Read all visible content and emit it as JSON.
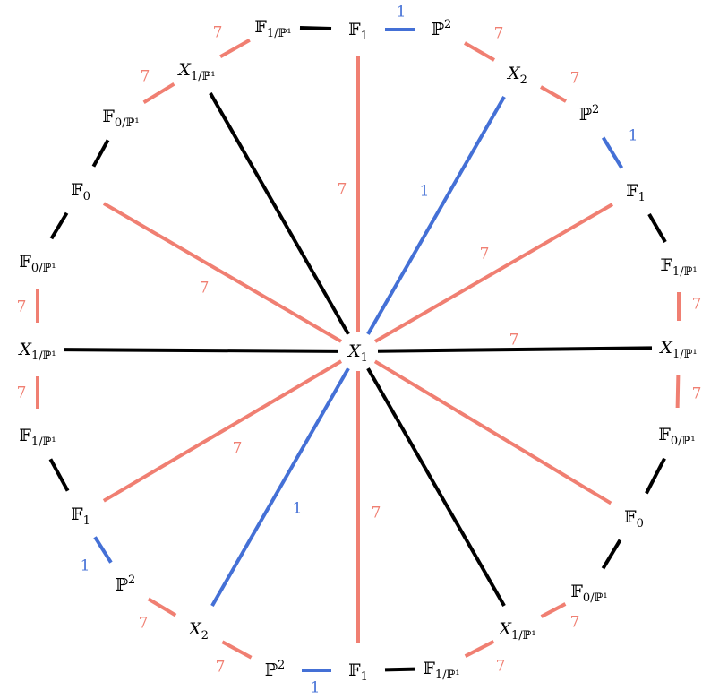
{
  "colors": {
    "black": "#000000",
    "salmon": "#f07f72",
    "blue": "#4470d6"
  },
  "nodes": [
    {
      "id": "center",
      "main": "X",
      "sub": "1"
    },
    {
      "id": "n0",
      "main": "𝔽",
      "sub": "1/ℙ¹"
    },
    {
      "id": "n1",
      "main": "𝔽",
      "sub": "1"
    },
    {
      "id": "n2",
      "main": "ℙ",
      "sub": "2",
      "sup": true
    },
    {
      "id": "n3",
      "main": "X",
      "sub": "2"
    },
    {
      "id": "n4",
      "main": "ℙ",
      "sub": "2",
      "sup": true
    },
    {
      "id": "n5",
      "main": "𝔽",
      "sub": "1"
    },
    {
      "id": "n6",
      "main": "𝔽",
      "sub": "1/ℙ¹"
    },
    {
      "id": "n7",
      "main": "X",
      "sub": "1/ℙ¹"
    },
    {
      "id": "n8",
      "main": "𝔽",
      "sub": "0/ℙ¹"
    },
    {
      "id": "n9",
      "main": "𝔽",
      "sub": "0"
    },
    {
      "id": "n10",
      "main": "𝔽",
      "sub": "0/ℙ¹"
    },
    {
      "id": "n11",
      "main": "X",
      "sub": "1/ℙ¹"
    },
    {
      "id": "n12",
      "main": "𝔽",
      "sub": "1/ℙ¹"
    },
    {
      "id": "n13",
      "main": "𝔽",
      "sub": "1"
    },
    {
      "id": "n14",
      "main": "ℙ",
      "sub": "2",
      "sup": true
    },
    {
      "id": "n15",
      "main": "X",
      "sub": "2"
    },
    {
      "id": "n16",
      "main": "ℙ",
      "sub": "2",
      "sup": true
    },
    {
      "id": "n17",
      "main": "𝔽",
      "sub": "1"
    },
    {
      "id": "n18",
      "main": "𝔽",
      "sub": "1/ℙ¹"
    },
    {
      "id": "n19",
      "main": "X",
      "sub": "1/ℙ¹"
    },
    {
      "id": "n20",
      "main": "𝔽",
      "sub": "0/ℙ¹"
    },
    {
      "id": "n21",
      "main": "𝔽",
      "sub": "0"
    },
    {
      "id": "n22",
      "main": "𝔽",
      "sub": "0/ℙ¹"
    },
    {
      "id": "n23",
      "main": "X",
      "sub": "1/ℙ¹"
    }
  ],
  "edges": [
    {
      "from": "n0",
      "to": "n1",
      "color": "black",
      "label": ""
    },
    {
      "from": "n1",
      "to": "n2",
      "color": "blue",
      "label": "1"
    },
    {
      "from": "n2",
      "to": "n3",
      "color": "salmon",
      "label": "7"
    },
    {
      "from": "n3",
      "to": "n4",
      "color": "salmon",
      "label": "7"
    },
    {
      "from": "n4",
      "to": "n5",
      "color": "blue",
      "label": "1"
    },
    {
      "from": "n5",
      "to": "n6",
      "color": "black",
      "label": ""
    },
    {
      "from": "n6",
      "to": "n7",
      "color": "salmon",
      "label": "7"
    },
    {
      "from": "n7",
      "to": "n8",
      "color": "salmon",
      "label": "7"
    },
    {
      "from": "n8",
      "to": "n9",
      "color": "black",
      "label": ""
    },
    {
      "from": "n9",
      "to": "n10",
      "color": "black",
      "label": ""
    },
    {
      "from": "n10",
      "to": "n11",
      "color": "salmon",
      "label": "7"
    },
    {
      "from": "n11",
      "to": "n12",
      "color": "salmon",
      "label": "7"
    },
    {
      "from": "n12",
      "to": "n13",
      "color": "black",
      "label": ""
    },
    {
      "from": "n13",
      "to": "n14",
      "color": "blue",
      "label": "1"
    },
    {
      "from": "n14",
      "to": "n15",
      "color": "salmon",
      "label": "7"
    },
    {
      "from": "n15",
      "to": "n16",
      "color": "salmon",
      "label": "7"
    },
    {
      "from": "n16",
      "to": "n17",
      "color": "blue",
      "label": "1"
    },
    {
      "from": "n17",
      "to": "n18",
      "color": "black",
      "label": ""
    },
    {
      "from": "n18",
      "to": "n19",
      "color": "salmon",
      "label": "7"
    },
    {
      "from": "n19",
      "to": "n20",
      "color": "salmon",
      "label": "7"
    },
    {
      "from": "n20",
      "to": "n21",
      "color": "black",
      "label": ""
    },
    {
      "from": "n21",
      "to": "n22",
      "color": "black",
      "label": ""
    },
    {
      "from": "n22",
      "to": "n23",
      "color": "salmon",
      "label": "7"
    },
    {
      "from": "n23",
      "to": "n0",
      "color": "salmon",
      "label": "7"
    },
    {
      "from": "center",
      "to": "n1",
      "color": "salmon",
      "label": "7"
    },
    {
      "from": "center",
      "to": "n3",
      "color": "blue",
      "label": "1"
    },
    {
      "from": "center",
      "to": "n5",
      "color": "salmon",
      "label": "7"
    },
    {
      "from": "center",
      "to": "n7",
      "color": "black",
      "label": ""
    },
    {
      "from": "center",
      "to": "n9",
      "color": "salmon",
      "label": "7"
    },
    {
      "from": "center",
      "to": "n11",
      "color": "black",
      "label": ""
    },
    {
      "from": "center",
      "to": "n13",
      "color": "salmon",
      "label": "7"
    },
    {
      "from": "center",
      "to": "n15",
      "color": "blue",
      "label": "1"
    },
    {
      "from": "center",
      "to": "n17",
      "color": "salmon",
      "label": "7"
    },
    {
      "from": "center",
      "to": "n19",
      "color": "black",
      "label": ""
    },
    {
      "from": "center",
      "to": "n21",
      "color": "salmon",
      "label": "7"
    },
    {
      "from": "center",
      "to": "n23",
      "color": "black",
      "label": ""
    }
  ]
}
